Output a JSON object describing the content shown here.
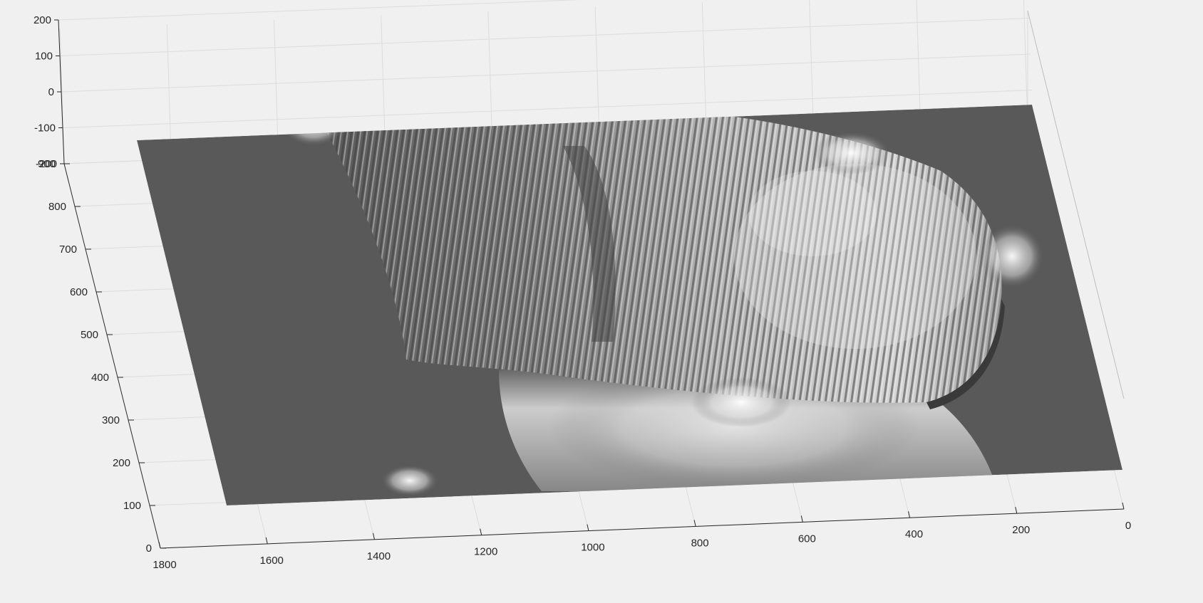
{
  "chart_data": {
    "type": "surface",
    "title": "",
    "xlabel": "",
    "ylabel": "",
    "zlabel": "",
    "x_ticks": [
      1800,
      1600,
      1400,
      1200,
      1000,
      800,
      600,
      400,
      200,
      0
    ],
    "y_ticks": [
      0,
      100,
      200,
      300,
      400,
      500,
      600,
      700,
      800,
      900
    ],
    "z_ticks": [
      200,
      100,
      0,
      -100,
      -200
    ],
    "x_range": [
      0,
      1800
    ],
    "y_range": [
      0,
      900
    ],
    "z_range": [
      -200,
      200
    ],
    "grid": true,
    "colormap": "gray",
    "surface_color": "#595959",
    "description_of_surface": ""
  }
}
